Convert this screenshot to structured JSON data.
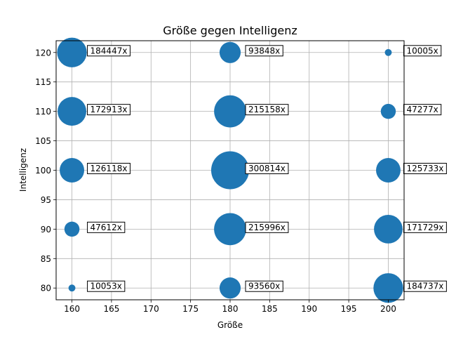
{
  "chart_data": {
    "type": "scatter",
    "title": "Größe gegen Intelligenz",
    "xlabel": "Größe",
    "ylabel": "Intelligenz",
    "xlim": [
      158,
      202
    ],
    "ylim": [
      78,
      122
    ],
    "xticks": [
      160,
      165,
      170,
      175,
      180,
      185,
      190,
      195,
      200
    ],
    "yticks": [
      80,
      85,
      90,
      95,
      100,
      105,
      110,
      115,
      120
    ],
    "grid": true,
    "marker_color": "#1f77b4",
    "points": [
      {
        "x": 160,
        "y": 80,
        "count": 10053,
        "label": "10053x"
      },
      {
        "x": 160,
        "y": 90,
        "count": 47612,
        "label": "47612x"
      },
      {
        "x": 160,
        "y": 100,
        "count": 126118,
        "label": "126118x"
      },
      {
        "x": 160,
        "y": 110,
        "count": 172913,
        "label": "172913x"
      },
      {
        "x": 160,
        "y": 120,
        "count": 184447,
        "label": "184447x"
      },
      {
        "x": 180,
        "y": 80,
        "count": 93560,
        "label": "93560x"
      },
      {
        "x": 180,
        "y": 90,
        "count": 215996,
        "label": "215996x"
      },
      {
        "x": 180,
        "y": 100,
        "count": 300814,
        "label": "300814x"
      },
      {
        "x": 180,
        "y": 110,
        "count": 215158,
        "label": "215158x"
      },
      {
        "x": 180,
        "y": 120,
        "count": 93848,
        "label": "93848x"
      },
      {
        "x": 200,
        "y": 80,
        "count": 184737,
        "label": "184737x"
      },
      {
        "x": 200,
        "y": 90,
        "count": 171729,
        "label": "171729x"
      },
      {
        "x": 200,
        "y": 100,
        "count": 125733,
        "label": "125733x"
      },
      {
        "x": 200,
        "y": 110,
        "count": 47277,
        "label": "47277x"
      },
      {
        "x": 200,
        "y": 120,
        "count": 10005,
        "label": "10005x"
      }
    ]
  }
}
